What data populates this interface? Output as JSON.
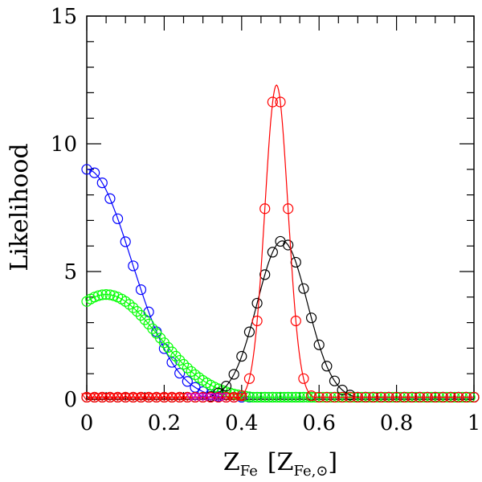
{
  "chart_data": {
    "type": "line",
    "title": "",
    "xlabel": {
      "main": "Z",
      "main_sub": "Fe",
      "bracket_open": "[",
      "inner": "Z",
      "inner_sub": "Fe,⊙",
      "bracket_close": "]"
    },
    "ylabel": "Likelihood",
    "xlim": [
      0,
      1
    ],
    "ylim": [
      0,
      15
    ],
    "x_ticks": [
      {
        "value": 0,
        "label": "0"
      },
      {
        "value": 0.2,
        "label": "0.2"
      },
      {
        "value": 0.4,
        "label": "0.4"
      },
      {
        "value": 0.6,
        "label": "0.6"
      },
      {
        "value": 0.8,
        "label": "0.8"
      },
      {
        "value": 1,
        "label": "1"
      }
    ],
    "y_ticks": [
      {
        "value": 0,
        "label": "0"
      },
      {
        "value": 5,
        "label": "5"
      },
      {
        "value": 10,
        "label": "10"
      },
      {
        "value": 15,
        "label": "15"
      }
    ],
    "series": [
      {
        "name": "blue",
        "color": "#0000ff",
        "marker": "circle",
        "curve": "halfgauss",
        "peak": 9.0,
        "mu": 0.0,
        "sigma": 0.115,
        "x_range": [
          0,
          1
        ],
        "x_step": 0.02
      },
      {
        "name": "green",
        "color": "#00ff00",
        "marker": "circle",
        "curve": "gauss",
        "peak": 4.1,
        "mu": 0.05,
        "sigma": 0.135,
        "x_range": [
          0,
          1
        ],
        "x_step": 0.01
      },
      {
        "name": "black",
        "color": "#000000",
        "marker": "circle",
        "curve": "gauss",
        "peak": 6.2,
        "mu": 0.505,
        "sigma": 0.065,
        "x_range": [
          0,
          1
        ],
        "x_step": 0.02
      },
      {
        "name": "red",
        "color": "#ff0000",
        "marker": "circle",
        "curve": "gauss",
        "peak": 12.3,
        "mu": 0.49,
        "sigma": 0.03,
        "x_range": [
          0,
          1
        ],
        "x_step": 0.02
      },
      {
        "name": "red-triangles",
        "color": "#ff0000",
        "marker": "triangle",
        "curve": "zero",
        "peak": 0.1,
        "x_range": [
          0,
          0.4
        ],
        "x_step": 0.01
      },
      {
        "name": "magenta",
        "color": "#cc00cc",
        "marker": "triangle",
        "curve": "zero",
        "peak": 0.1,
        "x_range": [
          0.27,
          0.35
        ],
        "x_step": 0.01
      }
    ]
  }
}
